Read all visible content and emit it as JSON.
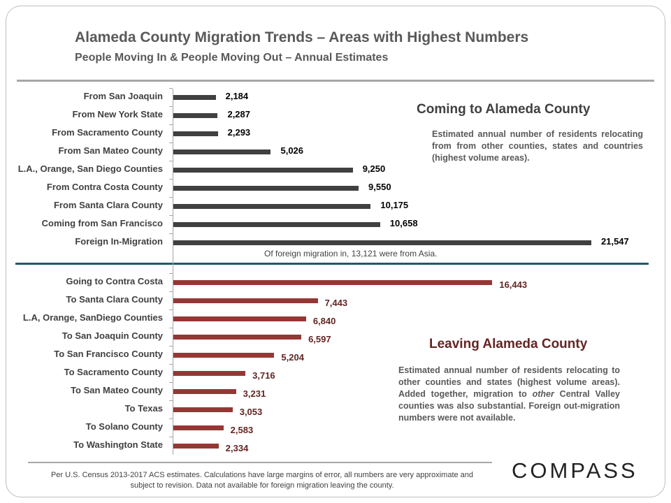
{
  "header": {
    "title": "Alameda County Migration Trends – Areas with Highest Numbers",
    "subtitle": "People Moving In & People Moving Out – Annual Estimates"
  },
  "chart_data": [
    {
      "type": "bar",
      "orientation": "horizontal",
      "title": "Coming to Alameda County",
      "color": "#404040",
      "categories": [
        "From San Joaquin",
        "From New York State",
        "From Sacramento County",
        "From San Mateo County",
        "L.A., Orange, San Diego Counties",
        "From Contra Costa County",
        "From Santa Clara County",
        "Coming from San Francisco",
        "Foreign In-Migration"
      ],
      "values": [
        2184,
        2287,
        2293,
        5026,
        9250,
        9550,
        10175,
        10658,
        21547
      ],
      "labels": [
        "2,184",
        "2,287",
        "2,293",
        "5,026",
        "9,250",
        "9,550",
        "10,175",
        "10,658",
        "21,547"
      ]
    },
    {
      "type": "bar",
      "orientation": "horizontal",
      "title": "Leaving Alameda County",
      "color": "#953735",
      "categories": [
        "Going to Contra Costa",
        "To Santa Clara County",
        "L.A, Orange, SanDiego Counties",
        "To San Joaquin County",
        "To San Francisco County",
        "To Sacramento County",
        "To San Mateo County",
        "To Texas",
        "To Solano County",
        "To Washington State"
      ],
      "values": [
        16443,
        7443,
        6840,
        6597,
        5204,
        3716,
        3231,
        3053,
        2583,
        2334
      ],
      "labels": [
        "16,443",
        "7,443",
        "6,840",
        "6,597",
        "5,204",
        "3,716",
        "3,231",
        "3,053",
        "2,583",
        "2,334"
      ]
    }
  ],
  "coming": {
    "heading": "Coming to Alameda County",
    "desc": "Estimated annual number of  residents relocating from  from other counties, states and countries (highest volume areas).",
    "note": "Of foreign migration in, 13,121  were from Asia."
  },
  "leaving": {
    "heading": "Leaving Alameda County",
    "desc_em": "other",
    "desc_pre": "Estimated annual number of  residents relocating to  other counties and states (highest volume areas). Added together, migration to ",
    "desc_post": " Central Valley counties was also substantial. Foreign out-migration numbers were not available."
  },
  "footer": {
    "text": "Per U.S. Census 2013-2017 ACS estimates. Calculations have large margins of error, all numbers are very approximate and subject to revision. Data not available for foreign migration leaving the county."
  },
  "logo": "COMPASS"
}
